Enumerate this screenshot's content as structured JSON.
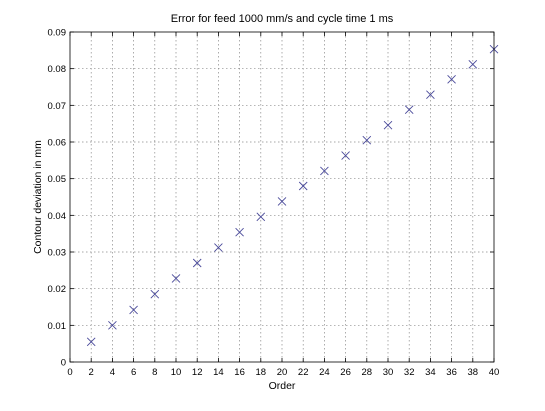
{
  "chart_data": {
    "type": "scatter",
    "title": "Error for feed 1000 mm/s and cycle time 1 ms",
    "xlabel": "Order",
    "ylabel": "Contour deviation in mm",
    "xlim": [
      0,
      40
    ],
    "ylim": [
      0,
      0.09
    ],
    "xticks": [
      "0",
      "2",
      "4",
      "6",
      "8",
      "10",
      "12",
      "14",
      "16",
      "18",
      "20",
      "22",
      "24",
      "26",
      "28",
      "30",
      "32",
      "34",
      "36",
      "38",
      "40"
    ],
    "yticks": [
      "0",
      "0.01",
      "0.02",
      "0.03",
      "0.04",
      "0.05",
      "0.06",
      "0.07",
      "0.08",
      "0.09"
    ],
    "grid": true,
    "marker": "x",
    "color": "#4a4a9a",
    "series": [
      {
        "x": [
          2,
          4,
          6,
          8,
          10,
          12,
          14,
          16,
          18,
          20,
          22,
          24,
          26,
          28,
          30,
          32,
          34,
          36,
          38,
          40
        ],
        "y": [
          0.0055,
          0.01,
          0.0142,
          0.0185,
          0.0228,
          0.027,
          0.0312,
          0.0354,
          0.0396,
          0.0438,
          0.048,
          0.0521,
          0.0563,
          0.0605,
          0.0646,
          0.0688,
          0.0729,
          0.0771,
          0.0812,
          0.0853
        ]
      }
    ]
  }
}
